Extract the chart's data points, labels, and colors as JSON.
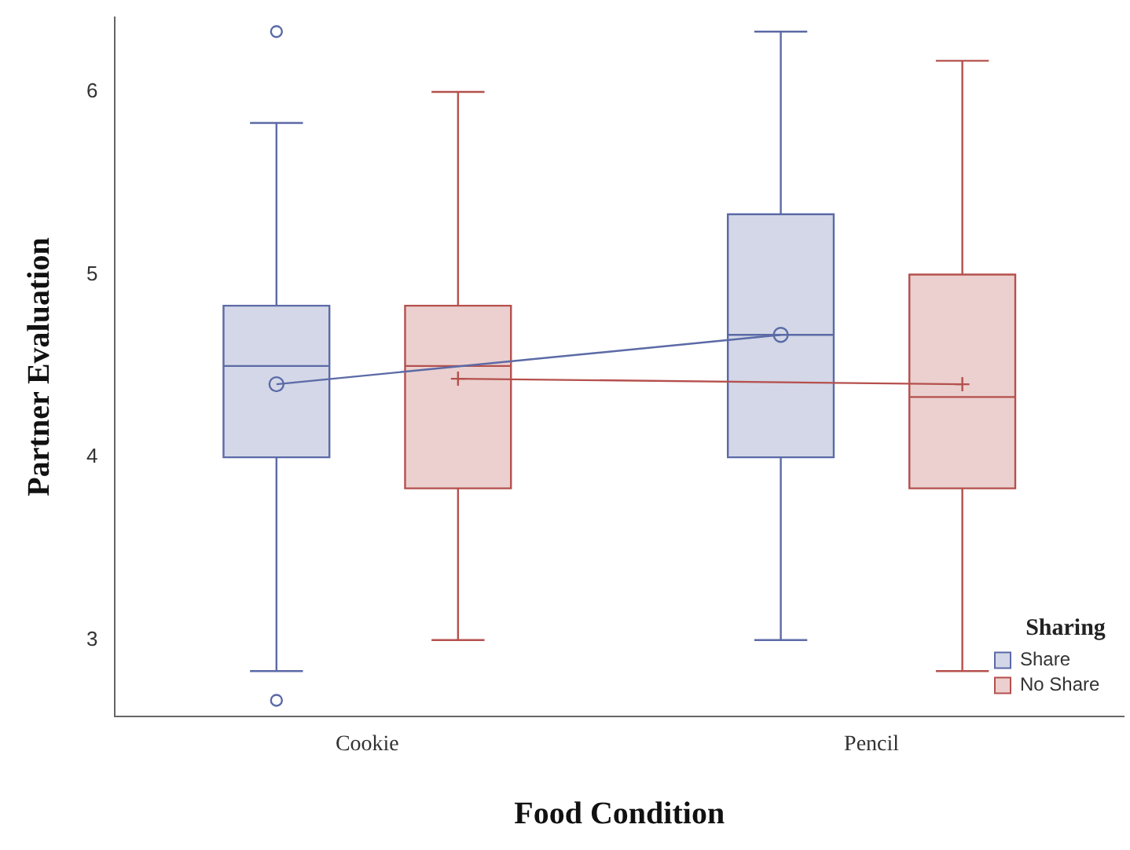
{
  "chart_data": {
    "type": "box",
    "xlabel": "Food Condition",
    "ylabel": "Partner Evaluation",
    "legend_title": "Sharing",
    "categories": [
      "Cookie",
      "Pencil"
    ],
    "ylim": [
      2.58,
      6.41
    ],
    "yticks": [
      3,
      4,
      5,
      6
    ],
    "grid": false,
    "legend": "bottom right",
    "series": [
      {
        "name": "Share",
        "color": "#5b6aa6",
        "marker": "circle",
        "boxes": [
          {
            "low": 2.83,
            "q1": 4.0,
            "median": 4.5,
            "q3": 4.83,
            "high": 5.83,
            "mean": 4.4,
            "outliers": [
              6.33,
              2.67
            ]
          },
          {
            "low": 3.0,
            "q1": 4.0,
            "median": 4.67,
            "q3": 5.33,
            "high": 6.33,
            "mean": 4.67
          }
        ]
      },
      {
        "name": "No Share",
        "color": "#b5504d",
        "marker": "cross",
        "boxes": [
          {
            "low": 3.0,
            "q1": 3.83,
            "median": 4.5,
            "q3": 4.83,
            "high": 6.0,
            "mean": 4.43
          },
          {
            "low": 2.83,
            "q1": 3.83,
            "median": 4.33,
            "q3": 5.0,
            "high": 6.17,
            "mean": 4.4
          }
        ]
      },
      {
        "type": "line",
        "color": "#5b6aa6",
        "values": [
          4.4,
          4.67
        ]
      },
      {
        "type": "line",
        "color": "#b5504d",
        "values": [
          4.43,
          4.4
        ]
      }
    ]
  }
}
